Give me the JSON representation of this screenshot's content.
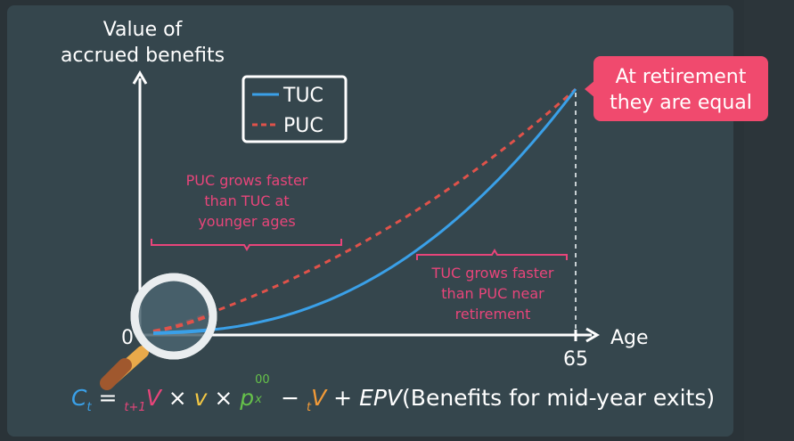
{
  "chart_data": {
    "type": "line",
    "ylabel_line1": "Value of",
    "ylabel_line2": "accrued benefits",
    "xlabel": "Age",
    "x_ticks": [
      "0",
      "65"
    ],
    "xlim": [
      0,
      65
    ],
    "series": [
      {
        "name": "TUC",
        "style": "solid",
        "color": "#3aa0e8"
      },
      {
        "name": "PUC",
        "style": "dashed",
        "color": "#e0524a"
      }
    ],
    "legend_position": "top-left"
  },
  "callout": {
    "line1": "At retirement",
    "line2": "they are equal",
    "color": "#f04a6e"
  },
  "annotations": {
    "puc_line1": "PUC grows faster",
    "puc_line2": "than TUC at",
    "puc_line3": "younger ages",
    "tuc_line1": "TUC grows faster",
    "tuc_line2": "than PUC near",
    "tuc_line3": "retirement",
    "color": "#e8457a"
  },
  "formula": {
    "c": "C",
    "c_sub": "t",
    "eq": " = ",
    "v1_sub": "t+1",
    "v1": "V",
    "times1": " × ",
    "v_small": "v",
    "times2": " × ",
    "p": "p",
    "p_sub": "x",
    "p_sup": "00",
    "minus": " − ",
    "v2_sub": "t",
    "v2": "V",
    "plus": " + ",
    "epv": "EPV",
    "paren": "(Benefits for mid-year exits)"
  },
  "icons": [
    "magnifying-glass-icon"
  ]
}
